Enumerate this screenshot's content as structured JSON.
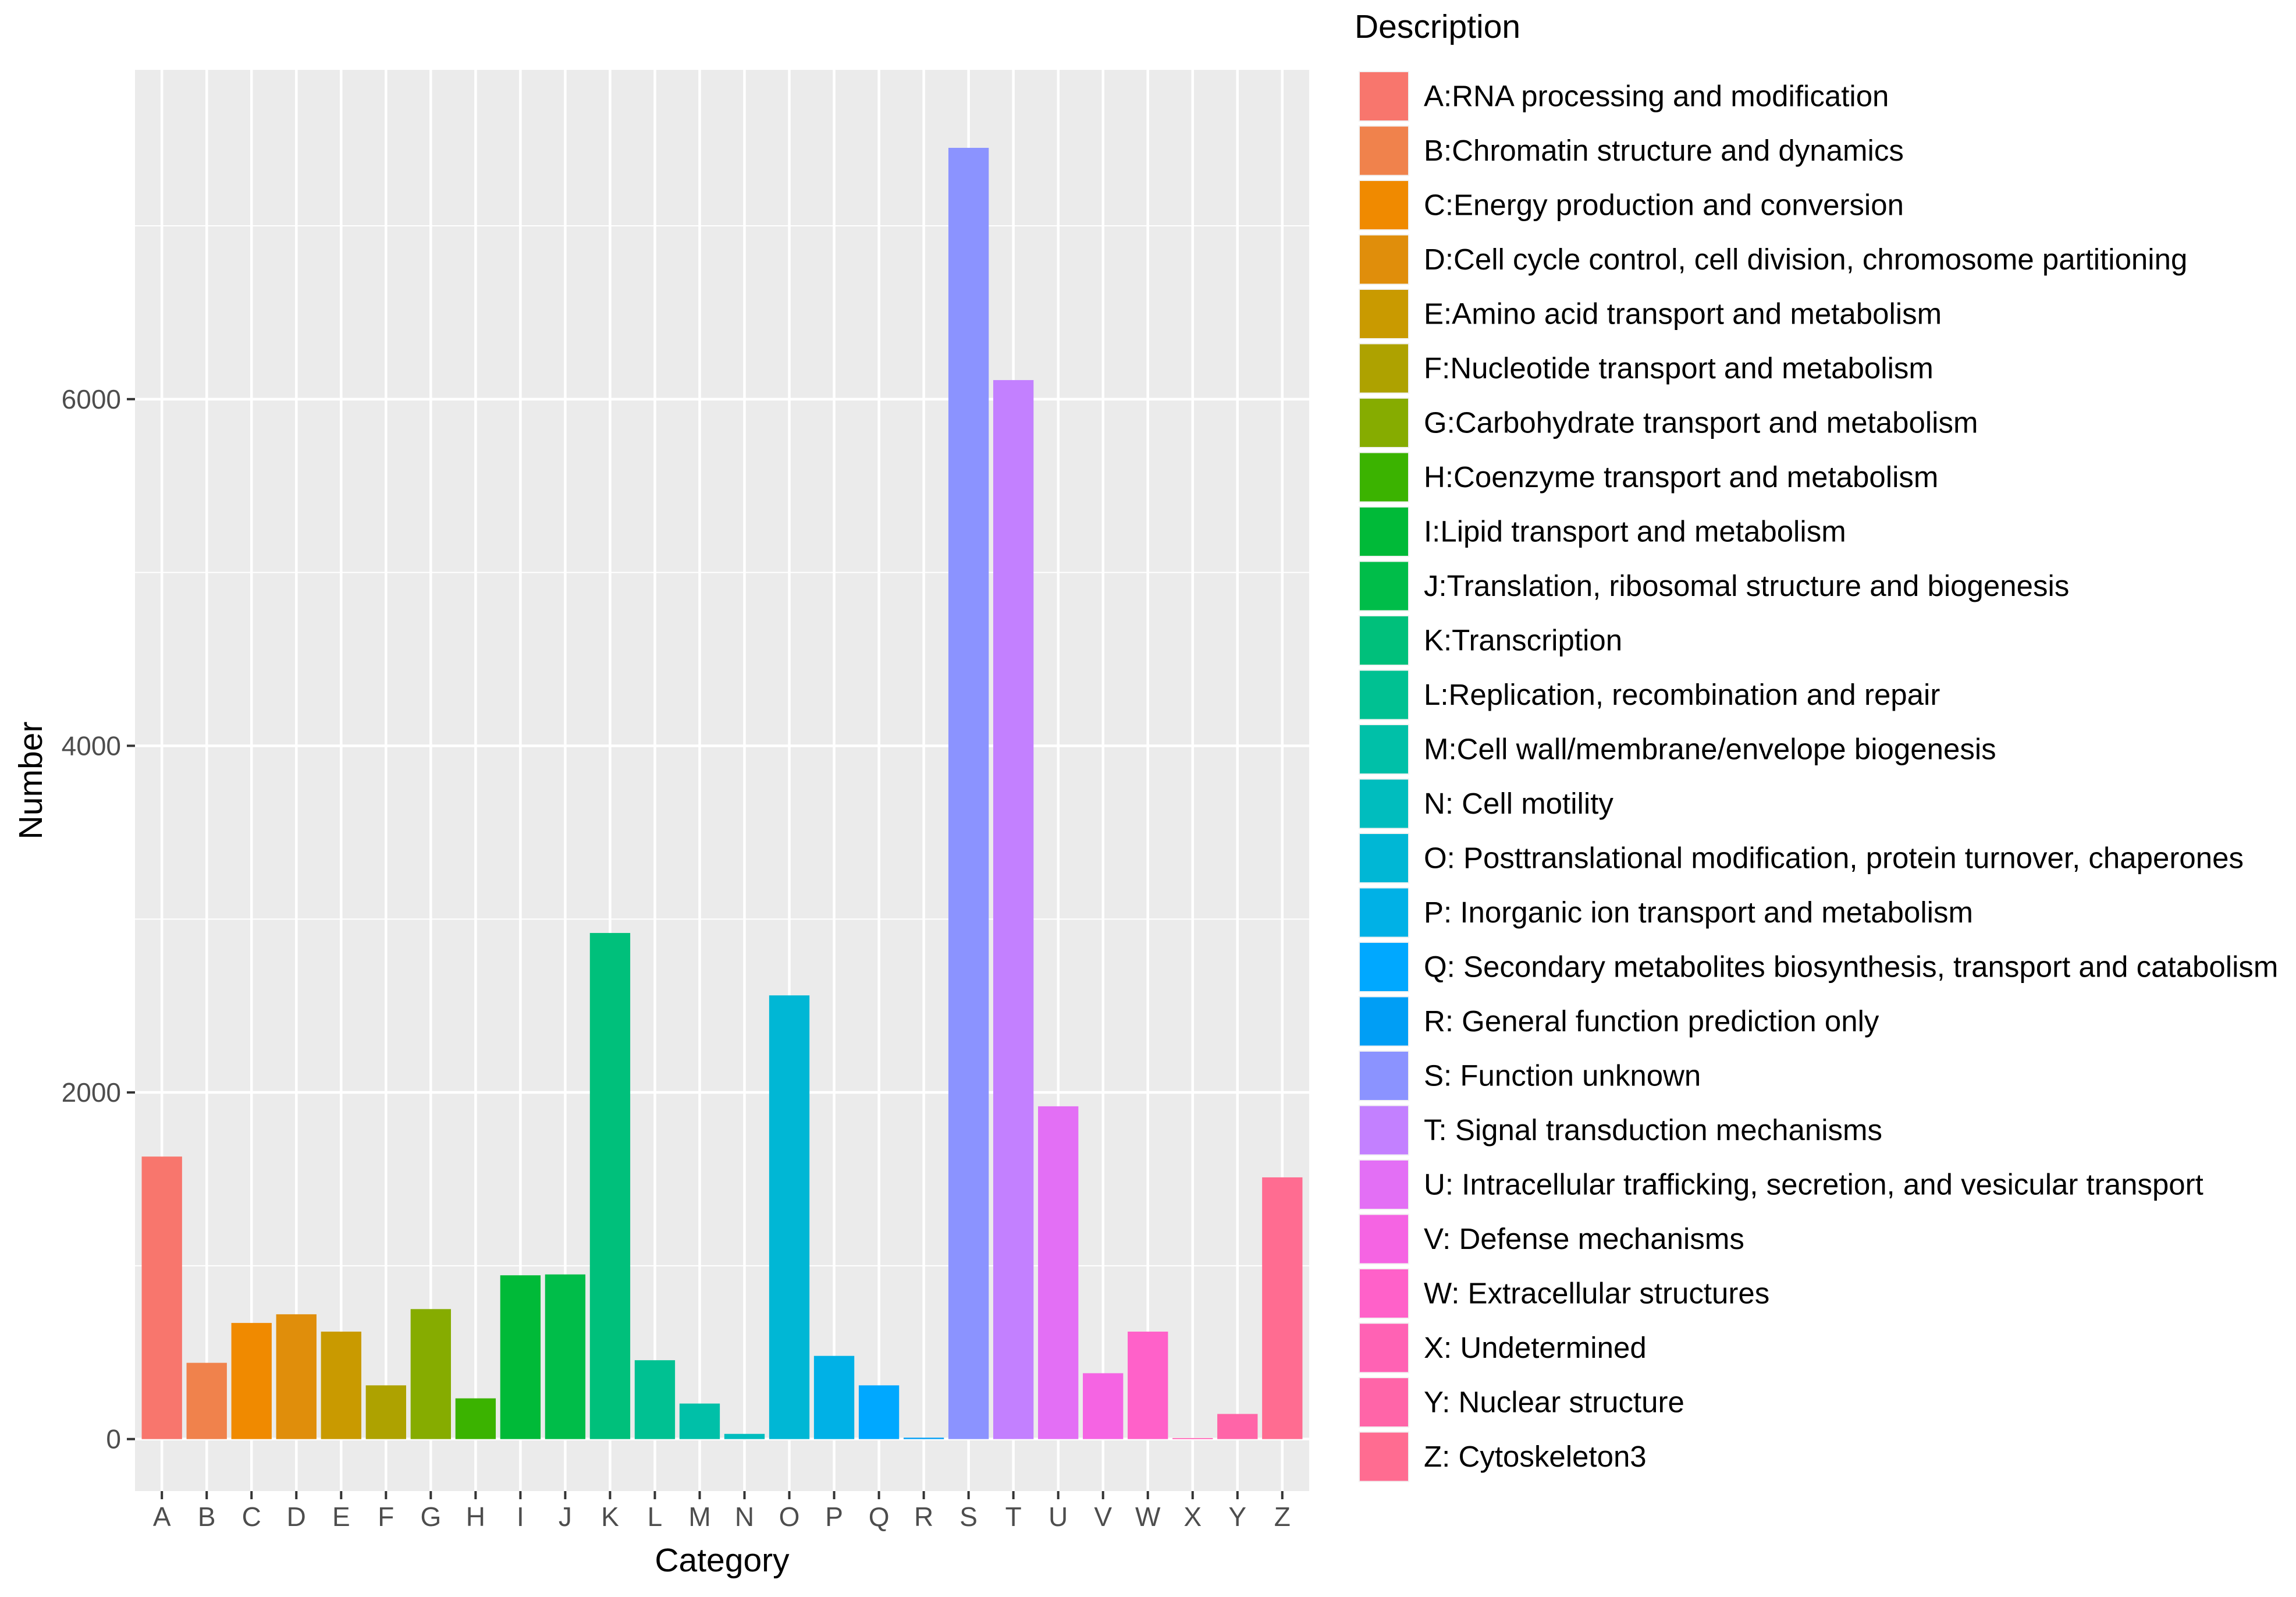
{
  "chart_data": {
    "type": "bar",
    "xlabel": "Category",
    "ylabel": "Number",
    "ylim": [
      -300,
      7900
    ],
    "yticks": [
      0,
      2000,
      4000,
      6000
    ],
    "grid": true,
    "legend_title": "Description",
    "legend_position": "right",
    "categories": [
      "A",
      "B",
      "C",
      "D",
      "E",
      "F",
      "G",
      "H",
      "I",
      "J",
      "K",
      "L",
      "M",
      "N",
      "O",
      "P",
      "Q",
      "R",
      "S",
      "T",
      "U",
      "V",
      "W",
      "X",
      "Y",
      "Z"
    ],
    "values": [
      1630,
      440,
      670,
      720,
      620,
      310,
      750,
      235,
      945,
      950,
      2920,
      455,
      205,
      30,
      2560,
      480,
      310,
      8,
      7450,
      6110,
      1920,
      380,
      620,
      6,
      145,
      1510
    ],
    "colors": [
      "#F8766D",
      "#F0824C",
      "#F08A00",
      "#E08E0B",
      "#C99A00",
      "#AEA200",
      "#86AC00",
      "#3BB300",
      "#00BA38",
      "#00BD49",
      "#00C07B",
      "#00C192",
      "#00C0A8",
      "#00BDBE",
      "#00B7D5",
      "#00B1E6",
      "#00A8FF",
      "#009EF5",
      "#8B93FF",
      "#C380FF",
      "#E36FF5",
      "#F564E3",
      "#FF61C9",
      "#FF62B4",
      "#FF65A8",
      "#FF6C91"
    ],
    "legend_labels": [
      "RNA processing and modification",
      "Chromatin structure and dynamics",
      "Energy production and conversion",
      "Cell cycle control, cell division, chromosome partitioning",
      "Amino acid transport and metabolism",
      "Nucleotide transport and metabolism",
      "Carbohydrate transport and metabolism",
      "Coenzyme transport and metabolism",
      "Lipid transport and metabolism",
      "Translation, ribosomal structure and biogenesis",
      "Transcription",
      "Replication, recombination and repair",
      "Cell wall/membrane/envelope biogenesis",
      "Cell motility",
      "Posttranslational modification, protein turnover, chaperones",
      "Inorganic ion transport and metabolism",
      "Secondary metabolites biosynthesis, transport and catabolism",
      "General function prediction only",
      "Function unknown",
      "Signal transduction mechanisms",
      "Intracellular trafficking, secretion, and vesicular transport",
      "Defense mechanisms",
      "Extracellular structures",
      "Undetermined",
      "Nuclear structure",
      "Cytoskeleton3"
    ]
  }
}
